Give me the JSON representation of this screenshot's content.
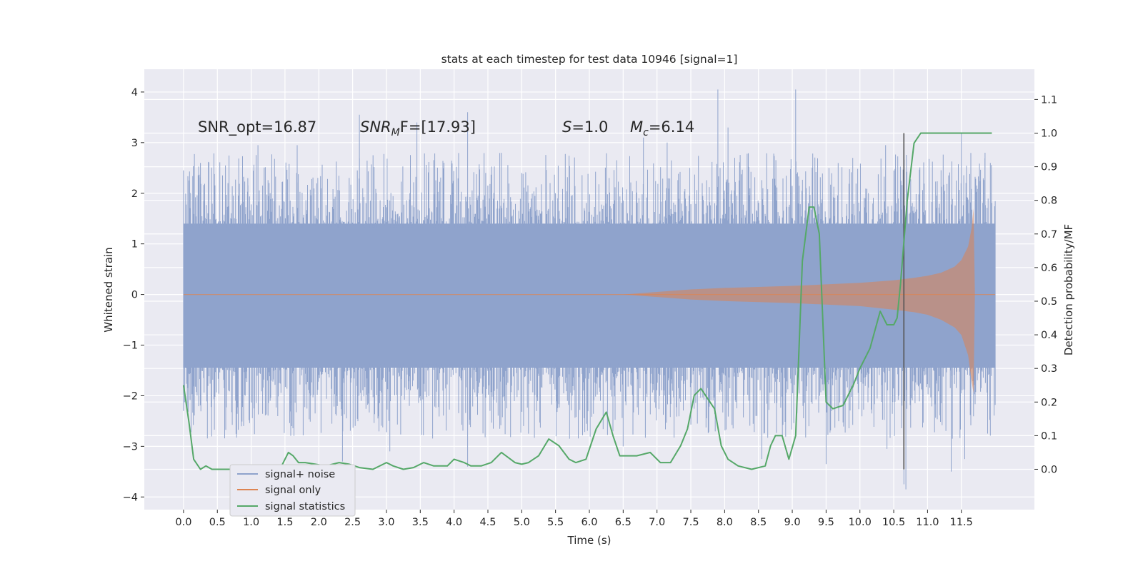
{
  "chart_data": {
    "type": "line",
    "title": "stats at each timestep for test data 10946 [signal=1]",
    "xlabel": "Time (s)",
    "ylabel": "Whitened strain",
    "y2label": "Detection probability/MF",
    "xlim": [
      -0.58,
      12.58
    ],
    "ylim": [
      -4.25,
      4.45
    ],
    "y2lim": [
      -0.12,
      1.19
    ],
    "xticks": [
      "0.0",
      "0.5",
      "1.0",
      "1.5",
      "2.0",
      "2.5",
      "3.0",
      "3.5",
      "4.0",
      "4.5",
      "5.0",
      "5.5",
      "6.0",
      "6.5",
      "7.0",
      "7.5",
      "8.0",
      "8.5",
      "9.0",
      "9.5",
      "10.0",
      "10.5",
      "11.0",
      "11.5"
    ],
    "yticks": [
      "4",
      "3",
      "2",
      "1",
      "0",
      "−1",
      "−2",
      "−3",
      "−4"
    ],
    "y2ticks": [
      "1.1",
      "1.0",
      "0.9",
      "0.8",
      "0.7",
      "0.6",
      "0.5",
      "0.4",
      "0.3",
      "0.2",
      "0.1",
      "0.0"
    ],
    "grid": true,
    "legend_position": "lower-left",
    "annotations": {
      "snr_opt": "SNR_opt=16.87",
      "snr_mf_base": "SNR",
      "snr_mf_sub": "M",
      "snr_mf_rest": "F=[17.93]",
      "s_var": "S",
      "s_val": "=1.0",
      "mc_var": "M",
      "mc_sub": "c",
      "mc_val": "=6.14"
    },
    "vline_x": 10.65,
    "series": [
      {
        "name": "signal+ noise",
        "color": "#8fa3cc",
        "t_range": [
          0.0,
          12.0
        ],
        "envelope_upper": 1.4,
        "envelope_lower": -1.45,
        "spike_peaks": [
          [
            0.0,
            2.45
          ],
          [
            0.25,
            2.6
          ],
          [
            0.62,
            2.55
          ],
          [
            0.95,
            2.3
          ],
          [
            1.1,
            2.95
          ],
          [
            1.68,
            2.95
          ],
          [
            2.6,
            3.55
          ],
          [
            3.45,
            3.4
          ],
          [
            4.2,
            3.6
          ],
          [
            5.0,
            2.4
          ],
          [
            6.8,
            3.1
          ],
          [
            7.15,
            3.0
          ],
          [
            7.9,
            4.05
          ],
          [
            8.05,
            3.3
          ],
          [
            9.05,
            4.05
          ],
          [
            10.38,
            2.95
          ],
          [
            11.5,
            3.2
          ],
          [
            11.85,
            2.8
          ]
        ],
        "spike_troughs": [
          [
            0.0,
            -2.3
          ],
          [
            1.6,
            -2.6
          ],
          [
            2.35,
            -3.3
          ],
          [
            3.05,
            -3.1
          ],
          [
            4.2,
            -3.4
          ],
          [
            5.1,
            -2.75
          ],
          [
            6.5,
            -3.0
          ],
          [
            8.55,
            -3.25
          ],
          [
            9.5,
            -3.35
          ],
          [
            10.4,
            -3.05
          ],
          [
            10.65,
            -3.75
          ],
          [
            10.68,
            -3.85
          ],
          [
            11.35,
            -3.5
          ],
          [
            11.55,
            -3.25
          ]
        ]
      },
      {
        "name": "signal only",
        "color": "#dd8452",
        "x": [
          6.5,
          7.0,
          7.5,
          8.0,
          8.5,
          9.0,
          9.5,
          10.0,
          10.5,
          10.8,
          11.0,
          11.2,
          11.4,
          11.5,
          11.6,
          11.65,
          11.68,
          11.7,
          11.72,
          12.0
        ],
        "upper": [
          0.0,
          0.05,
          0.1,
          0.13,
          0.15,
          0.17,
          0.2,
          0.23,
          0.28,
          0.33,
          0.37,
          0.43,
          0.55,
          0.68,
          0.95,
          1.3,
          1.7,
          0.0,
          0.0,
          0.0
        ],
        "lower": [
          0.0,
          -0.05,
          -0.1,
          -0.13,
          -0.15,
          -0.17,
          -0.2,
          -0.23,
          -0.3,
          -0.35,
          -0.4,
          -0.5,
          -0.65,
          -0.8,
          -1.2,
          -1.7,
          -1.95,
          0.0,
          0.0,
          0.0
        ]
      },
      {
        "name": "signal statistics",
        "color": "#55a868",
        "x": [
          0.0,
          0.08,
          0.15,
          0.25,
          0.33,
          0.42,
          0.5,
          0.7,
          0.9,
          1.1,
          1.3,
          1.45,
          1.55,
          1.62,
          1.7,
          1.8,
          1.95,
          2.1,
          2.3,
          2.45,
          2.6,
          2.8,
          3.0,
          3.1,
          3.25,
          3.4,
          3.55,
          3.7,
          3.9,
          4.0,
          4.15,
          4.25,
          4.4,
          4.55,
          4.7,
          4.9,
          5.0,
          5.1,
          5.25,
          5.4,
          5.55,
          5.7,
          5.8,
          5.95,
          6.1,
          6.25,
          6.35,
          6.45,
          6.55,
          6.7,
          6.9,
          7.05,
          7.2,
          7.35,
          7.45,
          7.55,
          7.65,
          7.75,
          7.85,
          7.95,
          8.05,
          8.2,
          8.4,
          8.6,
          8.68,
          8.75,
          8.85,
          8.95,
          9.05,
          9.15,
          9.25,
          9.32,
          9.4,
          9.5,
          9.6,
          9.75,
          9.9,
          10.0,
          10.15,
          10.3,
          10.4,
          10.5,
          10.55,
          10.6,
          10.7,
          10.8,
          10.9,
          11.0,
          11.5,
          11.95
        ],
        "y": [
          0.25,
          0.14,
          0.03,
          0.0,
          0.01,
          0.0,
          0.0,
          0.0,
          0.005,
          0.01,
          0.0,
          0.01,
          0.05,
          0.04,
          0.02,
          0.02,
          0.015,
          0.01,
          0.02,
          0.015,
          0.005,
          0.0,
          0.02,
          0.01,
          0.0,
          0.005,
          0.02,
          0.01,
          0.01,
          0.03,
          0.02,
          0.01,
          0.01,
          0.02,
          0.05,
          0.02,
          0.015,
          0.02,
          0.04,
          0.09,
          0.07,
          0.03,
          0.02,
          0.03,
          0.12,
          0.17,
          0.1,
          0.04,
          0.04,
          0.04,
          0.05,
          0.02,
          0.02,
          0.07,
          0.12,
          0.22,
          0.24,
          0.21,
          0.18,
          0.07,
          0.03,
          0.01,
          0.0,
          0.01,
          0.07,
          0.1,
          0.1,
          0.03,
          0.1,
          0.62,
          0.78,
          0.78,
          0.7,
          0.2,
          0.18,
          0.19,
          0.25,
          0.3,
          0.36,
          0.47,
          0.43,
          0.43,
          0.45,
          0.55,
          0.8,
          0.97,
          1.0,
          1.0,
          1.0,
          1.0
        ]
      }
    ]
  }
}
